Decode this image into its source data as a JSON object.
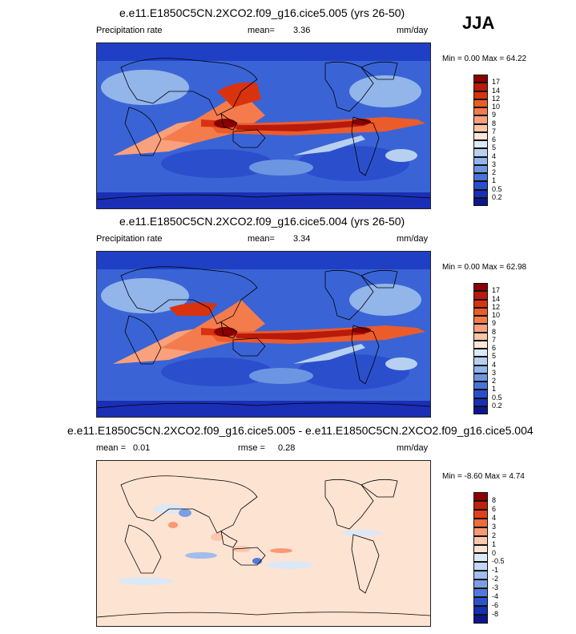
{
  "season": "JJA",
  "panels": [
    {
      "title": "e.e11.E1850C5CN.2XCO2.f09_g16.cice5.005 (yrs 26-50)",
      "left_label": "Precipitation rate",
      "mean_label": "mean=",
      "mean_value": "3.36",
      "units": "mm/day",
      "min_max": "Min =  0.00 Max = 64.22"
    },
    {
      "title": "e.e11.E1850C5CN.2XCO2.f09_g16.cice5.004 (yrs 26-50)",
      "left_label": "Precipitation rate",
      "mean_label": "mean=",
      "mean_value": "3.34",
      "units": "mm/day",
      "min_max": "Min =  0.00 Max = 62.98"
    },
    {
      "title": "e.e11.E1850C5CN.2XCO2.f09_g16.cice5.005 - e.e11.E1850C5CN.2XCO2.f09_g16.cice5.004",
      "left_label": "mean =",
      "left_value": "0.01",
      "mean_label": "rmse =",
      "mean_value": "0.28",
      "units": "mm/day",
      "min_max": "Min = -8.60 Max =  4.74"
    }
  ],
  "colorbars": {
    "precip": {
      "labels": [
        "17",
        "14",
        "12",
        "10",
        "9",
        "8",
        "7",
        "6",
        "5",
        "4",
        "3",
        "2",
        "1",
        "0.5",
        "0.2"
      ],
      "colors": [
        "#8b0000",
        "#b81a0c",
        "#d9320f",
        "#ec5b2a",
        "#f47c4c",
        "#f9a07c",
        "#fcc5a8",
        "#fbe6d8",
        "#dde8f6",
        "#b8d0f0",
        "#92b5ea",
        "#6d96e2",
        "#4a73d8",
        "#2b4fcc",
        "#1a2fb5",
        "#0c178f"
      ]
    },
    "diff": {
      "labels": [
        "8",
        "6",
        "4",
        "3",
        "2",
        "1",
        "0",
        "-0.5",
        "-1",
        "-2",
        "-3",
        "-4",
        "-6",
        "-8"
      ],
      "colors": [
        "#8b0000",
        "#c1200d",
        "#e0401c",
        "#f06a3c",
        "#f79a72",
        "#fbc7ad",
        "#fde3d2",
        "#dde8f6",
        "#c3d7f2",
        "#a0bdec",
        "#7b9fe4",
        "#5279da",
        "#2d52cb",
        "#1530b0",
        "#0b168c"
      ]
    }
  }
}
